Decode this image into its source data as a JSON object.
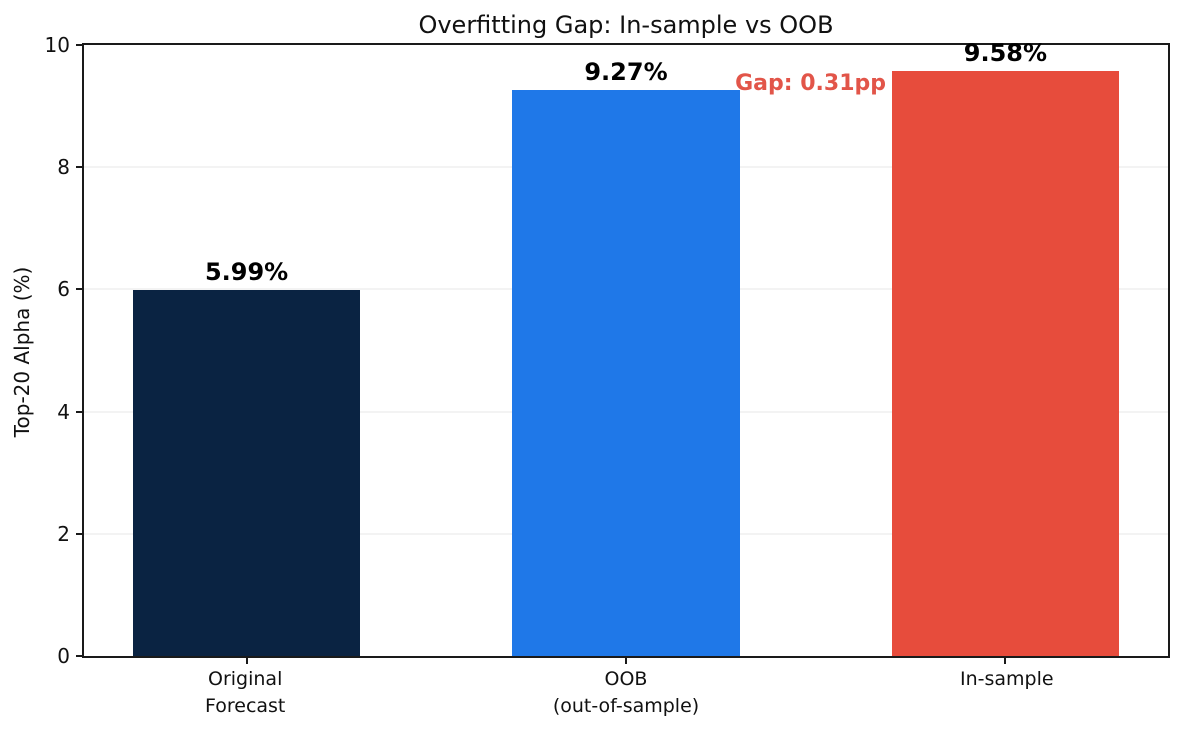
{
  "chart_data": {
    "type": "bar",
    "title": "Overfitting Gap: In-sample vs OOB",
    "ylabel": "Top-20 Alpha (%)",
    "xlabel": "",
    "categories": [
      "Original\nForecast",
      "OOB\n(out-of-sample)",
      "In-sample"
    ],
    "values": [
      5.99,
      9.27,
      9.58
    ],
    "value_labels": [
      "5.99%",
      "9.27%",
      "9.58%"
    ],
    "bar_colors": [
      "#0a2342",
      "#1f78e8",
      "#e74c3c"
    ],
    "ylim": [
      0,
      10
    ],
    "yticks": [
      0,
      2,
      4,
      6,
      8,
      10
    ],
    "grid": true,
    "legend_position": "none",
    "annotation": {
      "text": "Gap: 0.31pp",
      "color": "#e25549"
    }
  },
  "colors": {
    "spine": "#1a1a1a",
    "grid": "#e7e7e7",
    "background": "#ffffff",
    "text": "#111111"
  }
}
